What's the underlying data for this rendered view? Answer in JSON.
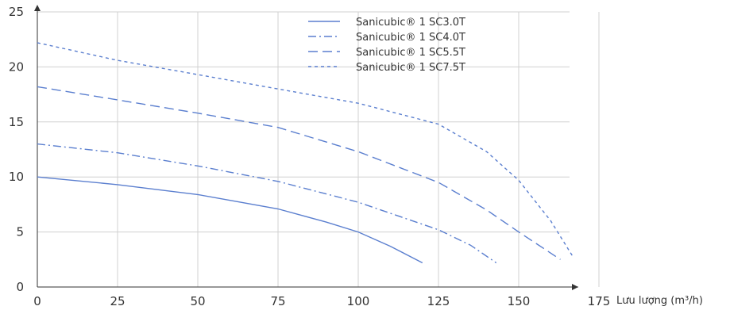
{
  "chart_data": {
    "type": "line",
    "title": "",
    "xlabel": "Lưu lượng (m³/h)",
    "ylabel": "",
    "xlim": [
      0,
      175
    ],
    "ylim": [
      0,
      25
    ],
    "xticks": [
      0,
      25,
      50,
      75,
      100,
      125,
      150,
      175
    ],
    "yticks": [
      0,
      5,
      10,
      15,
      20,
      25
    ],
    "grid": true,
    "legend_position": "top-center",
    "series": [
      {
        "name": "Sanicubic® 1 SC3.0T",
        "color": "#5b7fcf",
        "dash": "solid",
        "x": [
          0,
          25,
          50,
          75,
          90,
          100,
          110,
          120
        ],
        "y": [
          10.0,
          9.3,
          8.4,
          7.1,
          5.9,
          5.0,
          3.7,
          2.2
        ]
      },
      {
        "name": "Sanicubic® 1 SC4.0T",
        "color": "#5b7fcf",
        "dash": "dash-dot",
        "x": [
          0,
          25,
          50,
          75,
          100,
          125,
          135,
          143
        ],
        "y": [
          13.0,
          12.2,
          11.0,
          9.6,
          7.7,
          5.2,
          3.8,
          2.2
        ]
      },
      {
        "name": "Sanicubic® 1 SC5.5T",
        "color": "#5b7fcf",
        "dash": "long-dash",
        "x": [
          0,
          25,
          50,
          75,
          100,
          125,
          140,
          150,
          163
        ],
        "y": [
          18.2,
          17.0,
          15.8,
          14.5,
          12.3,
          9.5,
          7.0,
          5.0,
          2.5
        ]
      },
      {
        "name": "Sanicubic® 1 SC7.5T",
        "color": "#5b7fcf",
        "dash": "short-dash",
        "x": [
          0,
          25,
          50,
          75,
          100,
          125,
          140,
          150,
          160,
          167
        ],
        "y": [
          22.2,
          20.6,
          19.3,
          18.0,
          16.7,
          14.8,
          12.3,
          9.7,
          6.0,
          2.7
        ]
      }
    ]
  }
}
